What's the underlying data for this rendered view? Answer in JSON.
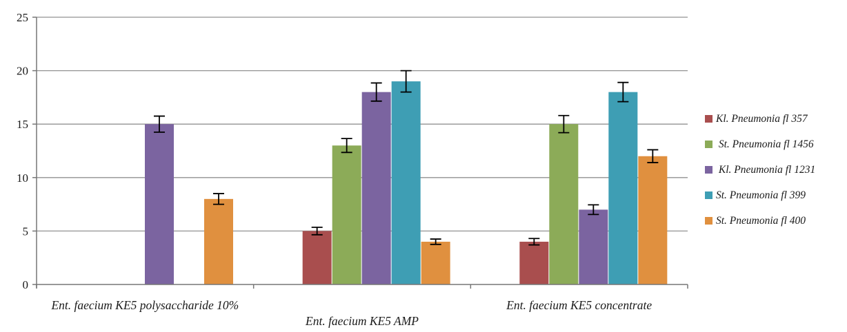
{
  "chart_data": {
    "type": "bar",
    "title": "",
    "xlabel": "",
    "ylabel": "",
    "categories": [
      "Ent. faecium KE5 polysaccharide 10%",
      "Ent. faecium KE5 AMP",
      "Ent. faecium KE5 concentrate"
    ],
    "category_label_tiers": [
      0,
      1,
      0
    ],
    "series": [
      {
        "name": "Kl. Pneumonia fl 357",
        "color": "#A94E4E",
        "values": [
          0,
          5,
          4
        ],
        "errors": [
          0,
          0.35,
          0.3
        ]
      },
      {
        "name": " St. Pneumonia fl 1456",
        "color": "#8CAB58",
        "values": [
          0,
          13,
          15
        ],
        "errors": [
          0,
          0.65,
          0.8
        ]
      },
      {
        "name": " Kl. Pneumonia fl 1231",
        "color": "#7B64A0",
        "values": [
          15,
          18,
          7
        ],
        "errors": [
          0.75,
          0.85,
          0.45
        ]
      },
      {
        "name": "St. Pneumonia fl 399",
        "color": "#3E9EB4",
        "values": [
          0,
          19,
          18
        ],
        "errors": [
          0,
          1.0,
          0.9
        ]
      },
      {
        "name": "St. Pneumonia fl 400",
        "color": "#E0903F",
        "values": [
          8,
          4,
          12
        ],
        "errors": [
          0.5,
          0.25,
          0.6
        ]
      }
    ],
    "y_axis": {
      "min": 0,
      "max": 25,
      "step": 5,
      "tick_labels": [
        "0",
        "5",
        "10",
        "15",
        "20",
        "25"
      ]
    },
    "grid": true,
    "error_bars": true,
    "legend_position": "right",
    "style": {
      "grid_color": "#919191",
      "axis_color": "#767676",
      "error_bar_color": "#000000",
      "background": "#FFFFFF",
      "text_color": "#1a1a1a"
    }
  }
}
